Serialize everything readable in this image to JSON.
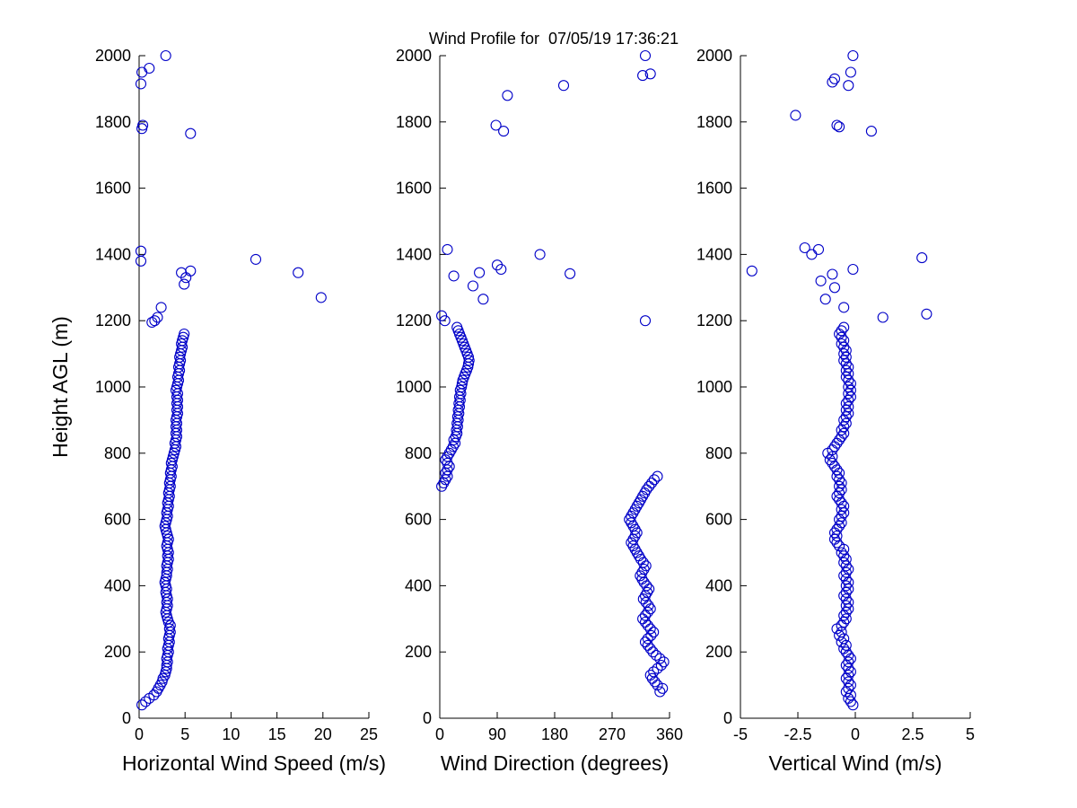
{
  "title": "Wind Profile for  07/05/19 17:36:21",
  "marker": {
    "shape": "circle-open",
    "color": "#0000C8"
  },
  "chart_data": [
    {
      "id": "horizontal-wind-speed",
      "type": "scatter",
      "title": "",
      "xlabel": "Horizontal Wind Speed (m/s)",
      "ylabel": "Height AGL (m)",
      "xlim": [
        0,
        25
      ],
      "ylim": [
        0,
        2000
      ],
      "xticks": [
        0,
        5,
        10,
        15,
        20,
        25
      ],
      "yticks": [
        0,
        200,
        400,
        600,
        800,
        1000,
        1200,
        1400,
        1600,
        1800,
        2000
      ],
      "bands": [
        {
          "height_start": 40,
          "height_step": 10,
          "values": [
            0.3,
            0.7,
            1.1,
            1.6,
            1.9,
            2.1,
            2.3,
            2.5,
            2.6,
            2.8,
            2.9,
            3.0,
            3.0,
            3.1,
            3.0,
            3.1,
            3.2,
            3.1,
            3.2,
            3.3,
            3.2,
            3.3,
            3.4,
            3.3,
            3.4,
            3.2,
            3.1,
            3.0,
            2.9,
            3.0,
            3.1,
            3.0,
            3.1,
            3.0,
            2.9,
            3.0,
            2.9,
            2.8,
            2.9,
            3.0,
            3.0,
            3.1,
            3.0,
            3.1,
            3.2,
            3.1,
            3.2,
            3.1,
            3.0,
            3.1,
            3.2,
            3.1,
            3.0,
            2.9,
            2.8,
            2.9,
            3.0,
            3.1,
            3.0,
            3.1,
            3.2,
            3.1,
            3.2,
            3.3,
            3.2,
            3.3,
            3.4,
            3.3,
            3.4,
            3.5,
            3.4,
            3.5,
            3.6,
            3.5,
            3.6,
            3.7,
            3.8,
            3.9,
            4.0,
            3.9,
            4.0,
            4.1,
            4.0,
            4.1,
            4.0,
            4.1,
            4.0,
            4.1,
            4.2,
            4.1,
            4.2,
            4.1,
            4.2,
            4.1,
            4.2,
            4.0,
            4.1,
            4.2,
            4.3,
            4.2,
            4.3,
            4.4,
            4.3,
            4.4,
            4.5,
            4.4,
            4.5,
            4.6,
            4.7,
            4.6,
            4.7,
            4.8,
            4.9
          ]
        }
      ],
      "extra_points": [
        [
          1.4,
          1195
        ],
        [
          1.7,
          1200
        ],
        [
          2.0,
          1210
        ],
        [
          2.4,
          1240
        ],
        [
          0.2,
          1380
        ],
        [
          0.2,
          1410
        ],
        [
          4.9,
          1310
        ],
        [
          5.1,
          1330
        ],
        [
          5.6,
          1350
        ],
        [
          4.6,
          1345
        ],
        [
          12.7,
          1385
        ],
        [
          17.3,
          1345
        ],
        [
          19.8,
          1270
        ],
        [
          5.6,
          1765
        ],
        [
          0.3,
          1780
        ],
        [
          0.4,
          1790
        ],
        [
          0.2,
          1915
        ],
        [
          0.3,
          1950
        ],
        [
          1.1,
          1962
        ],
        [
          2.9,
          2000
        ]
      ]
    },
    {
      "id": "wind-direction",
      "type": "scatter",
      "title": "",
      "xlabel": "Wind Direction (degrees)",
      "ylabel": "",
      "xlim": [
        0,
        360
      ],
      "ylim": [
        0,
        2000
      ],
      "xticks": [
        0,
        90,
        180,
        270,
        360
      ],
      "yticks": [
        0,
        200,
        400,
        600,
        800,
        1000,
        1200,
        1400,
        1600,
        1800,
        2000
      ],
      "bands": [
        {
          "height_start": 80,
          "height_step": 10,
          "values": [
            345,
            349,
            341,
            337,
            333,
            330,
            335,
            341,
            347,
            351,
            345,
            339,
            334,
            330,
            326,
            322,
            326,
            331,
            335,
            330,
            326,
            322,
            318,
            322,
            326,
            330,
            327,
            323,
            319,
            322,
            325,
            328,
            324,
            320,
            317,
            314,
            317,
            320,
            323,
            319,
            315,
            312,
            309,
            306,
            303,
            300,
            303,
            306,
            309,
            306,
            303,
            300,
            297,
            300,
            303,
            306,
            309,
            312,
            315,
            318,
            321,
            324,
            328,
            332,
            336,
            341
          ]
        },
        {
          "height_start": 700,
          "height_step": 10,
          "values": [
            3,
            6,
            9,
            12,
            9,
            12,
            15,
            12,
            9,
            12,
            15,
            18,
            21,
            24,
            22,
            25,
            27,
            26,
            28,
            27,
            29,
            28,
            30,
            29,
            31,
            30,
            32,
            31,
            33,
            32,
            34,
            35,
            36,
            38,
            40,
            42,
            44,
            45,
            46,
            45,
            43,
            41,
            39,
            37,
            35,
            33,
            31,
            29,
            27
          ]
        }
      ],
      "extra_points": [
        [
          8,
          1200
        ],
        [
          3,
          1215
        ],
        [
          322,
          1200
        ],
        [
          68,
          1265
        ],
        [
          52,
          1305
        ],
        [
          22,
          1335
        ],
        [
          62,
          1345
        ],
        [
          96,
          1355
        ],
        [
          90,
          1368
        ],
        [
          157,
          1400
        ],
        [
          204,
          1342
        ],
        [
          12,
          1415
        ],
        [
          100,
          1772
        ],
        [
          88,
          1790
        ],
        [
          106,
          1880
        ],
        [
          194,
          1910
        ],
        [
          330,
          1945
        ],
        [
          318,
          1940
        ],
        [
          322,
          2000
        ]
      ]
    },
    {
      "id": "vertical-wind",
      "type": "scatter",
      "title": "",
      "xlabel": "Vertical Wind (m/s)",
      "ylabel": "",
      "xlim": [
        -5,
        5
      ],
      "ylim": [
        0,
        2000
      ],
      "xticks": [
        -5,
        -2.5,
        0,
        2.5,
        5
      ],
      "yticks": [
        0,
        200,
        400,
        600,
        800,
        1000,
        1200,
        1400,
        1600,
        1800,
        2000
      ],
      "bands": [
        {
          "height_start": 40,
          "height_step": 10,
          "values": [
            -0.1,
            -0.2,
            -0.3,
            -0.2,
            -0.4,
            -0.3,
            -0.2,
            -0.3,
            -0.4,
            -0.3,
            -0.2,
            -0.3,
            -0.4,
            -0.3,
            -0.2,
            -0.3,
            -0.4,
            -0.5,
            -0.4,
            -0.6,
            -0.5,
            -0.7,
            -0.6,
            -0.8,
            -0.6,
            -0.5,
            -0.4,
            -0.5,
            -0.4,
            -0.3,
            -0.4,
            -0.3,
            -0.4,
            -0.5,
            -0.4,
            -0.3,
            -0.4,
            -0.3,
            -0.4,
            -0.5,
            -0.4,
            -0.3,
            -0.4,
            -0.5,
            -0.4,
            -0.5,
            -0.6,
            -0.5,
            -0.7,
            -0.8,
            -0.9,
            -0.8,
            -0.9,
            -0.8,
            -0.7,
            -0.6,
            -0.7,
            -0.6,
            -0.5,
            -0.6,
            -0.5,
            -0.6,
            -0.7,
            -0.8,
            -0.7,
            -0.6,
            -0.7,
            -0.6,
            -0.7,
            -0.8,
            -0.7,
            -0.8,
            -0.9,
            -1.0,
            -1.1,
            -1.0,
            -1.2,
            -1.0,
            -0.9,
            -0.8,
            -0.7,
            -0.6,
            -0.5,
            -0.6,
            -0.5,
            -0.4,
            -0.5,
            -0.4,
            -0.3,
            -0.4,
            -0.3,
            -0.4,
            -0.3,
            -0.2,
            -0.3,
            -0.2,
            -0.3,
            -0.2,
            -0.3,
            -0.4,
            -0.3,
            -0.4,
            -0.3,
            -0.4,
            -0.5,
            -0.4,
            -0.5,
            -0.4,
            -0.5,
            -0.6,
            -0.5,
            -0.6,
            -0.7,
            -0.6,
            -0.5
          ]
        }
      ],
      "extra_points": [
        [
          1.2,
          1210
        ],
        [
          3.1,
          1220
        ],
        [
          -0.5,
          1240
        ],
        [
          -1.3,
          1265
        ],
        [
          -0.9,
          1300
        ],
        [
          -1.5,
          1320
        ],
        [
          -1.0,
          1340
        ],
        [
          -0.1,
          1355
        ],
        [
          -4.5,
          1350
        ],
        [
          2.9,
          1390
        ],
        [
          -1.9,
          1400
        ],
        [
          -1.6,
          1415
        ],
        [
          -2.2,
          1420
        ],
        [
          0.7,
          1772
        ],
        [
          -0.7,
          1785
        ],
        [
          -0.8,
          1790
        ],
        [
          -2.6,
          1820
        ],
        [
          -0.3,
          1910
        ],
        [
          -1.0,
          1920
        ],
        [
          -0.9,
          1930
        ],
        [
          -0.2,
          1950
        ],
        [
          -0.1,
          2000
        ]
      ]
    }
  ]
}
